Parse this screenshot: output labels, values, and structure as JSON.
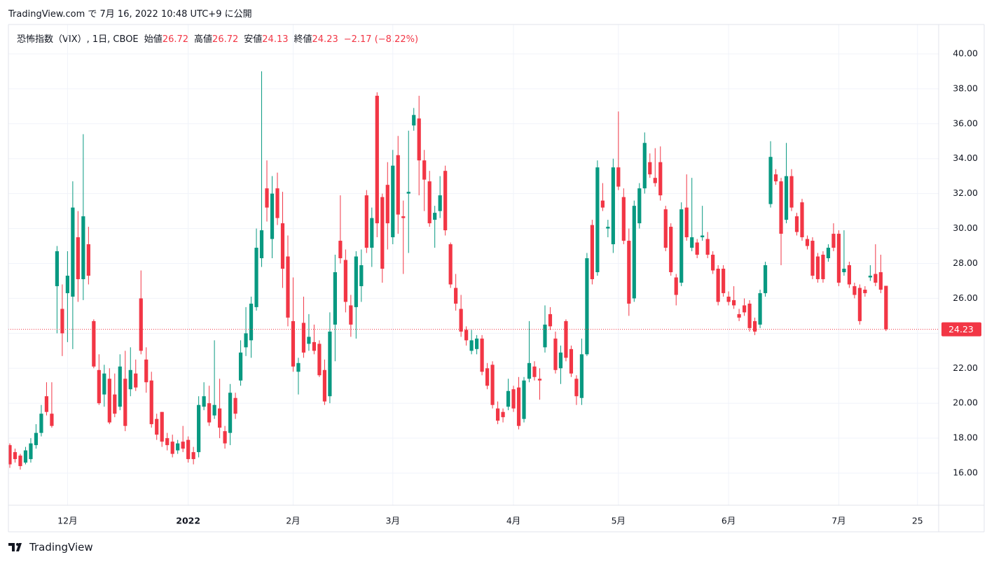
{
  "header": {
    "published": "TradingView.com で 7月 16, 2022 10:48 UTC+9 に公開"
  },
  "chart_data": {
    "type": "candlestick",
    "title": "恐怖指数（VIX）, 1日, CBOE",
    "ohlc_labels": [
      "始値",
      "高値",
      "安値",
      "終値"
    ],
    "change_label": "−2.17 (−8.22%)",
    "categories": [
      null,
      null,
      null,
      null,
      null,
      null,
      null,
      null,
      null,
      null,
      null,
      "12月",
      null,
      null,
      null,
      null,
      null,
      null,
      null,
      null,
      null,
      null,
      null,
      null,
      null,
      null,
      null,
      null,
      null,
      null,
      null,
      null,
      null,
      null,
      "2022",
      null,
      null,
      null,
      null,
      null,
      null,
      null,
      null,
      null,
      null,
      null,
      null,
      null,
      null,
      null,
      null,
      null,
      null,
      null,
      "2月",
      null,
      null,
      null,
      null,
      null,
      null,
      null,
      null,
      null,
      null,
      null,
      null,
      null,
      null,
      null,
      null,
      null,
      null,
      "3月",
      null,
      null,
      null,
      null,
      null,
      null,
      null,
      null,
      null,
      null,
      null,
      null,
      null,
      null,
      null,
      null,
      null,
      null,
      null,
      null,
      null,
      null,
      "4月",
      null,
      null,
      null,
      null,
      null,
      null,
      null,
      null,
      null,
      null,
      null,
      null,
      null,
      null,
      null,
      null,
      null,
      null,
      null,
      "5月",
      null,
      null,
      null,
      null,
      null,
      null,
      null,
      null,
      null,
      null,
      null,
      null,
      null,
      null,
      null,
      null,
      null,
      null,
      null,
      null,
      "6月",
      null,
      null,
      null,
      null,
      null,
      null,
      null,
      null,
      null,
      null,
      null,
      null,
      null,
      null,
      null,
      null,
      null,
      null,
      null,
      null,
      "7月",
      null,
      null,
      null,
      null,
      null,
      null,
      null,
      null,
      null,
      null,
      null,
      null,
      null,
      null,
      "25"
    ],
    "open": [
      17.6,
      17.2,
      17.0,
      16.6,
      16.8,
      17.6,
      18.3,
      20.4,
      19.4,
      26.7,
      25.4,
      26.3,
      26.1,
      29.5,
      27.1,
      29.1,
      24.7,
      21.9,
      20.5,
      21.4,
      20.5,
      19.8,
      21.4,
      20.8,
      21.7,
      26.0,
      22.5,
      21.3,
      19.1,
      19.5,
      18.0,
      17.8,
      17.3,
      17.8,
      17.9,
      17.2,
      17.2,
      19.8,
      20.0,
      19.3,
      19.7,
      18.4,
      18.3,
      20.3,
      21.3,
      23.2,
      23.6,
      25.5,
      28.3,
      32.3,
      29.4,
      32.3,
      30.3,
      28.4,
      24.7,
      21.8,
      24.6,
      23.4,
      23.5,
      23.4,
      21.9,
      20.4,
      24.5,
      29.3,
      28.2,
      25.6,
      25.5,
      26.7,
      31.9,
      28.9,
      37.6,
      31.8,
      32.5,
      29.5,
      34.2,
      30.7,
      32.0,
      35.9,
      36.3,
      33.9,
      32.7,
      30.5,
      31.0,
      33.3,
      29.1,
      26.6,
      25.4,
      24.2,
      23.0,
      23.1,
      23.7,
      22.0,
      22.2,
      19.7,
      19.5,
      19.8,
      20.8,
      20.9,
      19.1,
      21.4,
      22.1,
      21.4,
      23.2,
      25.1,
      23.7,
      22.0,
      24.7,
      23.1,
      21.4,
      20.3,
      22.8,
      30.2,
      27.5,
      31.6,
      30.0,
      29.1,
      33.5,
      31.8,
      29.3,
      26.0,
      30.3,
      32.3,
      33.8,
      32.9,
      33.8,
      31.1,
      30.1,
      27.2,
      26.9,
      31.2,
      28.9,
      29.2,
      29.5,
      29.4,
      28.5,
      27.7,
      27.7,
      26.1,
      25.9,
      25.1,
      25.6,
      25.7,
      24.7,
      24.5,
      26.3,
      31.4,
      33.1,
      32.7,
      30.5,
      33.0,
      30.7,
      31.5,
      29.4,
      29.3,
      28.4,
      28.5,
      28.3,
      29.7,
      29.7,
      27.5,
      27.9,
      26.7,
      26.6,
      26.5,
      27.2,
      27.4,
      27.5,
      26.72,
      null,
      null,
      null,
      null,
      null,
      null
    ],
    "high": [
      17.7,
      17.4,
      17.1,
      17.5,
      18.0,
      18.8,
      19.9,
      21.2,
      21.2,
      29.0,
      26.8,
      28.7,
      32.7,
      31.0,
      35.4,
      30.1,
      24.8,
      22.8,
      22.2,
      22.0,
      21.7,
      22.8,
      23.0,
      23.2,
      22.5,
      27.6,
      23.2,
      21.8,
      19.4,
      19.5,
      18.3,
      18.2,
      17.9,
      18.7,
      18.1,
      17.5,
      20.4,
      21.2,
      21.0,
      23.6,
      21.4,
      18.7,
      21.1,
      20.6,
      23.6,
      25.5,
      26.1,
      30.0,
      39.0,
      33.9,
      33.0,
      33.2,
      32.1,
      29.6,
      27.2,
      22.6,
      26.1,
      25.1,
      24.5,
      23.6,
      22.5,
      25.2,
      28.5,
      31.9,
      28.8,
      26.2,
      28.7,
      28.8,
      32.2,
      31.2,
      37.8,
      32.0,
      33.8,
      34.5,
      35.3,
      31.6,
      35.6,
      36.9,
      37.6,
      34.5,
      33.3,
      31.3,
      33.0,
      33.6,
      29.2,
      27.4,
      26.2,
      24.4,
      24.2,
      23.9,
      23.9,
      22.3,
      22.4,
      20.1,
      19.7,
      21.4,
      21.0,
      21.5,
      21.5,
      24.7,
      22.4,
      22.0,
      25.6,
      25.5,
      24.1,
      23.3,
      24.8,
      23.3,
      21.6,
      23.7,
      28.6,
      30.5,
      33.9,
      32.6,
      30.5,
      34.0,
      36.7,
      32.3,
      30.0,
      31.6,
      32.6,
      35.5,
      34.3,
      34.6,
      34.7,
      31.3,
      30.3,
      27.4,
      31.5,
      33.1,
      32.9,
      29.4,
      31.3,
      29.8,
      28.7,
      27.9,
      27.9,
      26.4,
      26.7,
      25.4,
      26.0,
      25.9,
      24.9,
      26.5,
      28.1,
      35.0,
      33.4,
      32.9,
      34.9,
      33.4,
      30.9,
      31.7,
      29.6,
      29.5,
      28.6,
      28.7,
      29.1,
      30.3,
      29.9,
      29.9,
      28.1,
      26.9,
      26.8,
      26.7,
      27.9,
      29.1,
      28.5,
      26.72,
      null,
      null,
      null,
      null,
      null,
      null
    ],
    "low": [
      16.3,
      16.6,
      16.2,
      16.5,
      16.6,
      17.4,
      18.1,
      19.3,
      18.6,
      24.0,
      22.7,
      23.5,
      23.1,
      25.8,
      25.9,
      26.8,
      22.0,
      19.9,
      19.8,
      18.8,
      19.2,
      19.6,
      18.4,
      20.4,
      20.7,
      22.8,
      20.6,
      18.6,
      17.9,
      17.5,
      17.3,
      16.9,
      17.1,
      17.2,
      16.6,
      16.5,
      16.9,
      19.6,
      18.7,
      19.1,
      18.0,
      17.4,
      17.6,
      19.1,
      21.0,
      22.7,
      22.6,
      25.3,
      27.8,
      30.4,
      28.3,
      30.2,
      26.6,
      24.4,
      21.8,
      20.5,
      22.6,
      23.0,
      22.8,
      21.5,
      19.9,
      20.0,
      22.4,
      28.0,
      25.2,
      23.8,
      23.7,
      25.8,
      28.6,
      27.8,
      29.5,
      26.9,
      28.8,
      29.1,
      29.7,
      27.4,
      28.6,
      35.6,
      31.9,
      31.0,
      30.1,
      28.9,
      30.6,
      29.6,
      26.6,
      25.3,
      23.8,
      23.3,
      22.8,
      22.8,
      21.6,
      20.8,
      19.7,
      18.8,
      18.9,
      19.6,
      19.5,
      18.5,
      18.9,
      21.2,
      21.3,
      20.2,
      22.9,
      24.2,
      21.7,
      21.1,
      22.4,
      21.5,
      19.9,
      19.9,
      22.7,
      26.8,
      27.3,
      31.0,
      29.5,
      28.6,
      32.2,
      29.1,
      25.0,
      25.8,
      30.0,
      32.0,
      32.9,
      32.4,
      31.6,
      28.7,
      27.3,
      25.6,
      26.7,
      29.3,
      28.7,
      28.3,
      29.3,
      28.3,
      27.4,
      25.6,
      26.1,
      25.6,
      25.4,
      24.7,
      25.0,
      24.1,
      23.9,
      24.3,
      26.1,
      31.2,
      32.5,
      27.9,
      30.3,
      31.0,
      29.6,
      29.3,
      28.8,
      27.1,
      26.9,
      26.9,
      28.1,
      28.7,
      26.7,
      27.3,
      26.6,
      26.0,
      24.5,
      26.1,
      27.0,
      26.7,
      26.3,
      24.13,
      null,
      null,
      null,
      null,
      null,
      null
    ],
    "close": [
      16.5,
      16.8,
      16.4,
      17.3,
      17.7,
      18.3,
      19.4,
      19.5,
      18.7,
      28.7,
      24.0,
      27.3,
      31.2,
      27.1,
      30.7,
      27.3,
      22.1,
      20.0,
      21.7,
      18.9,
      19.4,
      22.1,
      18.7,
      21.9,
      20.9,
      23.0,
      21.2,
      18.8,
      18.2,
      17.8,
      17.6,
      17.1,
      17.7,
      17.4,
      16.8,
      16.8,
      19.9,
      20.4,
      18.9,
      19.9,
      18.6,
      17.7,
      20.6,
      19.4,
      22.9,
      24.0,
      25.7,
      28.9,
      29.9,
      31.2,
      32.0,
      30.6,
      27.7,
      24.9,
      22.1,
      22.3,
      22.9,
      23.8,
      23.0,
      21.6,
      20.1,
      24.1,
      27.5,
      28.3,
      25.8,
      24.5,
      28.4,
      27.9,
      28.9,
      30.6,
      30.3,
      27.7,
      30.3,
      33.6,
      30.8,
      30.6,
      32.1,
      36.5,
      33.9,
      32.8,
      30.3,
      30.9,
      31.9,
      29.9,
      26.8,
      25.7,
      24.1,
      23.6,
      23.6,
      23.7,
      21.8,
      21.0,
      19.9,
      19.0,
      19.2,
      20.7,
      19.7,
      18.7,
      21.3,
      22.3,
      21.5,
      21.3,
      24.5,
      24.4,
      21.9,
      22.9,
      22.6,
      21.7,
      20.4,
      22.8,
      28.3,
      27.1,
      33.5,
      31.2,
      30.1,
      33.5,
      32.4,
      29.3,
      25.7,
      31.3,
      32.3,
      34.9,
      33.1,
      32.6,
      31.9,
      28.9,
      27.5,
      26.2,
      31.1,
      29.5,
      29.5,
      28.5,
      29.6,
      28.5,
      27.6,
      25.8,
      26.3,
      25.8,
      25.6,
      24.9,
      25.2,
      24.3,
      24.1,
      26.3,
      27.9,
      34.1,
      32.7,
      29.7,
      33.0,
      31.2,
      29.8,
      29.5,
      29.0,
      27.3,
      27.1,
      27.1,
      28.9,
      28.9,
      26.9,
      27.7,
      26.8,
      26.2,
      24.7,
      26.3,
      27.3,
      26.9,
      26.5,
      24.23,
      null,
      null,
      null,
      null,
      null,
      null
    ],
    "up_color": "#089981",
    "down_color": "#f23645",
    "ylim": [
      14.16,
      41.68
    ],
    "yticks": [
      {
        "value": 16,
        "label": "16.00"
      },
      {
        "value": 18,
        "label": "18.00"
      },
      {
        "value": 20,
        "label": "20.00"
      },
      {
        "value": 22,
        "label": "22.00"
      },
      {
        "value": 24,
        "label": "24.00"
      },
      {
        "value": 26,
        "label": "26.00"
      },
      {
        "value": 28,
        "label": "28.00"
      },
      {
        "value": 30,
        "label": "30.00"
      },
      {
        "value": 32,
        "label": "32.00"
      },
      {
        "value": 34,
        "label": "34.00"
      },
      {
        "value": 36,
        "label": "36.00"
      },
      {
        "value": 38,
        "label": "38.00"
      },
      {
        "value": 40,
        "label": "40.00"
      }
    ],
    "grid": true,
    "last_price_line": true
  },
  "footer": {
    "brand": "TradingView"
  }
}
